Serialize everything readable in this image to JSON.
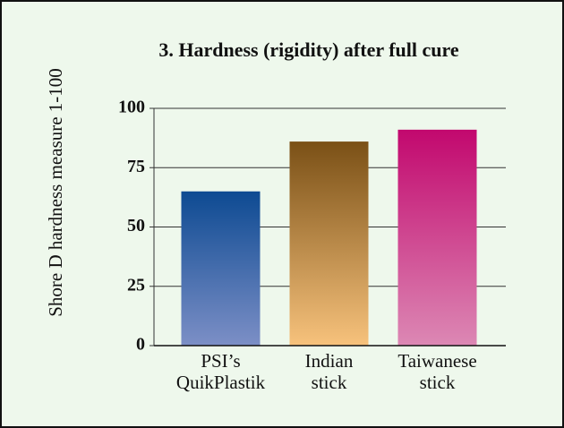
{
  "chart_data": {
    "type": "bar",
    "title": "3. Hardness (rigidity) after full cure",
    "y_label": "Shore D hardness measure 1-100",
    "categories": [
      [
        "PSI’s",
        "QuikPlastik"
      ],
      [
        "Indian",
        "stick"
      ],
      [
        "Taiwanese",
        "stick"
      ]
    ],
    "values": [
      65,
      86,
      91
    ],
    "colors": [
      [
        "#0d4a92",
        "#7c8fc6"
      ],
      [
        "#7a5016",
        "#f7c27c"
      ],
      [
        "#c2086e",
        "#dc88b4"
      ]
    ],
    "ylim": [
      0,
      100
    ],
    "yticks": [
      0,
      25,
      50,
      75,
      100
    ],
    "grid": true
  }
}
